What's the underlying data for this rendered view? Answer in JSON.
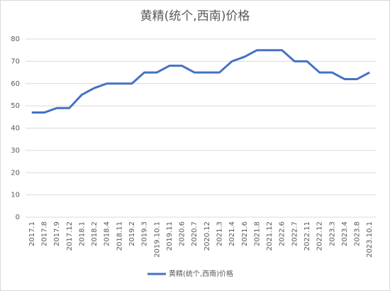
{
  "chart_data": {
    "type": "line",
    "title": "黄精(统个,西南)价格",
    "categories": [
      "2017.1",
      "2017.8",
      "2017.9",
      "2017.12",
      "2018.1",
      "2018.2",
      "2018.4",
      "2018.11",
      "2019.2",
      "2019.3",
      "2019.10.1",
      "2019.11",
      "2020.6",
      "2020.7",
      "2020.12",
      "2021.3",
      "2021.4",
      "2021.6",
      "2021.8",
      "2021.12",
      "2022.6",
      "2022.7",
      "2022.11",
      "2022.12",
      "2023.3",
      "2023.4",
      "2023.8",
      "2023.10.1"
    ],
    "series": [
      {
        "name": "黄精(统个,西南)价格",
        "color": "#4472c4",
        "values": [
          47,
          47,
          49,
          49,
          55,
          58,
          60,
          60,
          60,
          65,
          65,
          68,
          68,
          65,
          65,
          65,
          70,
          72,
          75,
          75,
          75,
          70,
          70,
          65,
          65,
          62,
          62,
          65
        ]
      }
    ],
    "ylim": [
      0,
      80
    ],
    "yticks": [
      0,
      10,
      20,
      30,
      40,
      50,
      60,
      70,
      80
    ],
    "grid": true,
    "legend": "bottom"
  }
}
